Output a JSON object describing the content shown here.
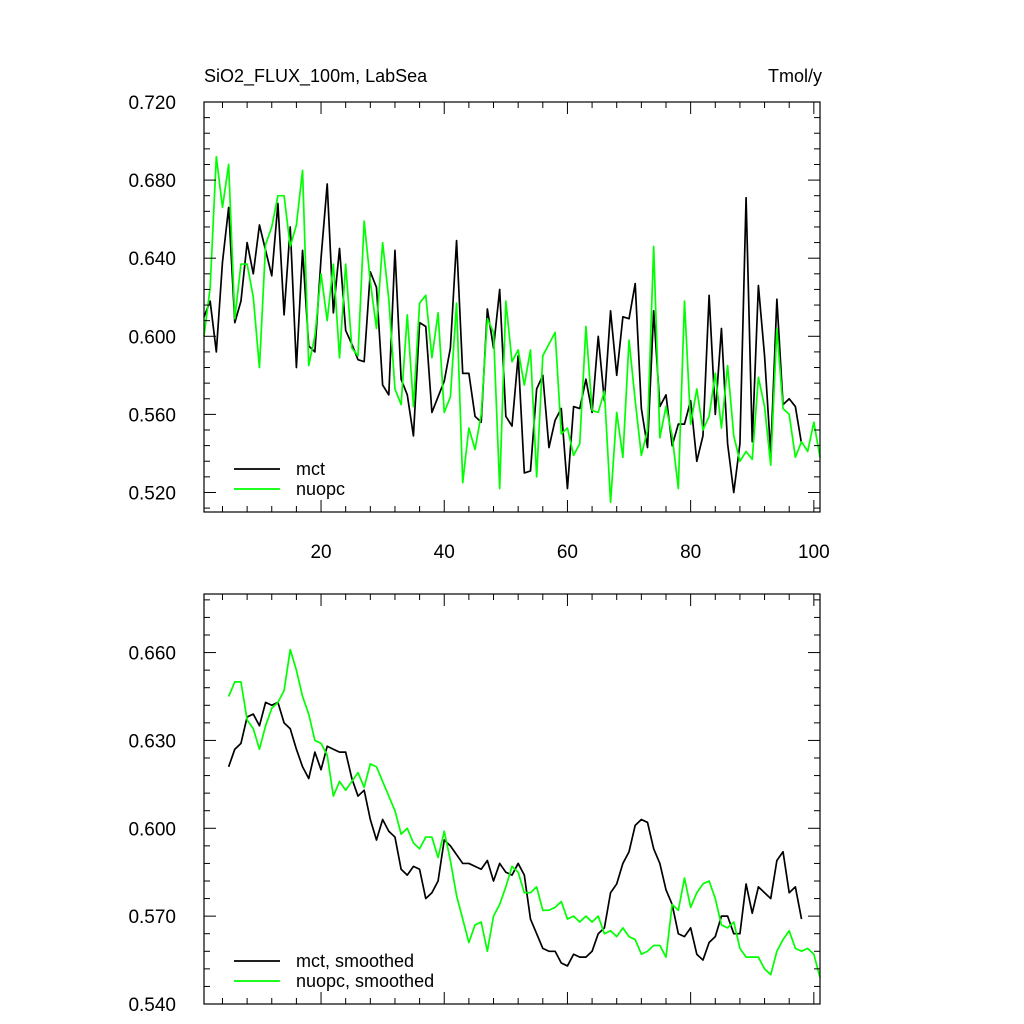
{
  "chart_data": [
    {
      "type": "line",
      "title": "SiO2_FLUX_100m, LabSea",
      "units": "Tmol/y",
      "xlabel": "",
      "ylabel": "",
      "xlim": [
        1,
        101
      ],
      "ylim": [
        0.51,
        0.72
      ],
      "x_ticks": [
        20,
        40,
        60,
        80,
        100
      ],
      "x_tick_labels": [
        "20",
        "40",
        "60",
        "80",
        "100"
      ],
      "y_ticks": [
        0.52,
        0.56,
        0.6,
        0.64,
        0.68,
        0.72
      ],
      "y_tick_labels": [
        "0.520",
        "0.560",
        "0.600",
        "0.640",
        "0.680",
        "0.720"
      ],
      "legend_position": "bottom-left",
      "x_start": 1,
      "series": [
        {
          "name": "mct",
          "color": "#000000",
          "values": [
            0.61,
            0.618,
            0.592,
            0.638,
            0.666,
            0.607,
            0.618,
            0.648,
            0.632,
            0.657,
            0.644,
            0.631,
            0.668,
            0.611,
            0.656,
            0.584,
            0.644,
            0.595,
            0.592,
            0.64,
            0.678,
            0.612,
            0.645,
            0.603,
            0.596,
            0.588,
            0.587,
            0.633,
            0.625,
            0.575,
            0.57,
            0.644,
            0.578,
            0.57,
            0.549,
            0.607,
            0.605,
            0.561,
            0.569,
            0.577,
            0.594,
            0.649,
            0.581,
            0.581,
            0.559,
            0.556,
            0.614,
            0.594,
            0.624,
            0.559,
            0.554,
            0.59,
            0.53,
            0.531,
            0.573,
            0.58,
            0.543,
            0.557,
            0.563,
            0.522,
            0.564,
            0.563,
            0.578,
            0.561,
            0.6,
            0.567,
            0.613,
            0.58,
            0.61,
            0.609,
            0.627,
            0.563,
            0.543,
            0.613,
            0.564,
            0.57,
            0.544,
            0.555,
            0.555,
            0.567,
            0.536,
            0.549,
            0.621,
            0.56,
            0.604,
            0.545,
            0.52,
            0.545,
            0.671,
            0.546,
            0.626,
            0.59,
            0.54,
            0.619,
            0.565,
            0.568,
            0.564,
            0.545
          ]
        },
        {
          "name": "nuopc",
          "color": "#00ff00",
          "values": [
            0.6,
            0.625,
            0.692,
            0.666,
            0.688,
            0.609,
            0.637,
            0.637,
            0.62,
            0.584,
            0.647,
            0.656,
            0.672,
            0.672,
            0.646,
            0.657,
            0.685,
            0.585,
            0.6,
            0.632,
            0.608,
            0.637,
            0.589,
            0.637,
            0.594,
            0.59,
            0.659,
            0.628,
            0.604,
            0.648,
            0.619,
            0.573,
            0.565,
            0.611,
            0.564,
            0.617,
            0.621,
            0.589,
            0.612,
            0.561,
            0.569,
            0.617,
            0.525,
            0.553,
            0.542,
            0.56,
            0.609,
            0.602,
            0.522,
            0.618,
            0.587,
            0.593,
            0.575,
            0.593,
            0.528,
            0.59,
            0.596,
            0.602,
            0.55,
            0.553,
            0.539,
            0.545,
            0.605,
            0.562,
            0.561,
            0.572,
            0.515,
            0.561,
            0.538,
            0.598,
            0.567,
            0.539,
            0.552,
            0.646,
            0.548,
            0.564,
            0.549,
            0.522,
            0.618,
            0.555,
            0.573,
            0.552,
            0.559,
            0.581,
            0.553,
            0.585,
            0.549,
            0.536,
            0.541,
            0.537,
            0.579,
            0.564,
            0.534,
            0.604,
            0.563,
            0.56,
            0.538,
            0.546,
            0.541,
            0.556,
            0.538
          ]
        }
      ]
    },
    {
      "type": "line",
      "title": "",
      "xlabel": "",
      "ylabel": "",
      "xlim": [
        1,
        101
      ],
      "ylim": [
        0.54,
        0.68
      ],
      "x_ticks": [
        20,
        40,
        60,
        80,
        100
      ],
      "x_tick_labels": [
        "",
        "",
        "",
        "",
        ""
      ],
      "y_ticks": [
        0.54,
        0.57,
        0.6,
        0.63,
        0.66
      ],
      "y_tick_labels": [
        "0.540",
        "0.570",
        "0.600",
        "0.630",
        "0.660"
      ],
      "legend_position": "bottom-left",
      "x_start": 5,
      "series": [
        {
          "name": "mct, smoothed",
          "color": "#000000",
          "values": [
            0.621,
            0.627,
            0.629,
            0.638,
            0.639,
            0.635,
            0.643,
            0.642,
            0.643,
            0.636,
            0.634,
            0.627,
            0.621,
            0.617,
            0.626,
            0.62,
            0.628,
            0.627,
            0.626,
            0.626,
            0.617,
            0.611,
            0.613,
            0.603,
            0.596,
            0.603,
            0.599,
            0.597,
            0.586,
            0.584,
            0.587,
            0.586,
            0.576,
            0.578,
            0.582,
            0.596,
            0.594,
            0.591,
            0.588,
            0.588,
            0.587,
            0.586,
            0.589,
            0.582,
            0.588,
            0.585,
            0.584,
            0.588,
            0.584,
            0.569,
            0.564,
            0.559,
            0.558,
            0.558,
            0.554,
            0.553,
            0.557,
            0.556,
            0.556,
            0.558,
            0.564,
            0.566,
            0.578,
            0.581,
            0.588,
            0.592,
            0.601,
            0.603,
            0.602,
            0.593,
            0.588,
            0.579,
            0.574,
            0.564,
            0.563,
            0.566,
            0.557,
            0.555,
            0.561,
            0.563,
            0.57,
            0.57,
            0.564,
            0.564,
            0.581,
            0.571,
            0.58,
            0.578,
            0.576,
            0.589,
            0.592,
            0.578,
            0.58,
            0.569
          ]
        },
        {
          "name": "nuopc, smoothed",
          "color": "#00ff00",
          "values": [
            0.645,
            0.65,
            0.65,
            0.637,
            0.634,
            0.627,
            0.635,
            0.641,
            0.643,
            0.647,
            0.661,
            0.654,
            0.645,
            0.639,
            0.63,
            0.629,
            0.625,
            0.611,
            0.616,
            0.613,
            0.616,
            0.619,
            0.614,
            0.622,
            0.621,
            0.616,
            0.611,
            0.606,
            0.598,
            0.6,
            0.595,
            0.593,
            0.597,
            0.597,
            0.59,
            0.599,
            0.589,
            0.577,
            0.569,
            0.561,
            0.567,
            0.568,
            0.558,
            0.57,
            0.574,
            0.58,
            0.587,
            0.585,
            0.578,
            0.578,
            0.58,
            0.572,
            0.572,
            0.573,
            0.575,
            0.569,
            0.57,
            0.568,
            0.57,
            0.568,
            0.57,
            0.564,
            0.565,
            0.563,
            0.566,
            0.563,
            0.562,
            0.557,
            0.558,
            0.56,
            0.56,
            0.556,
            0.574,
            0.572,
            0.583,
            0.573,
            0.578,
            0.581,
            0.582,
            0.576,
            0.567,
            0.566,
            0.568,
            0.559,
            0.556,
            0.556,
            0.556,
            0.552,
            0.55,
            0.558,
            0.562,
            0.565,
            0.559,
            0.558,
            0.559,
            0.557,
            0.549
          ]
        }
      ]
    }
  ]
}
